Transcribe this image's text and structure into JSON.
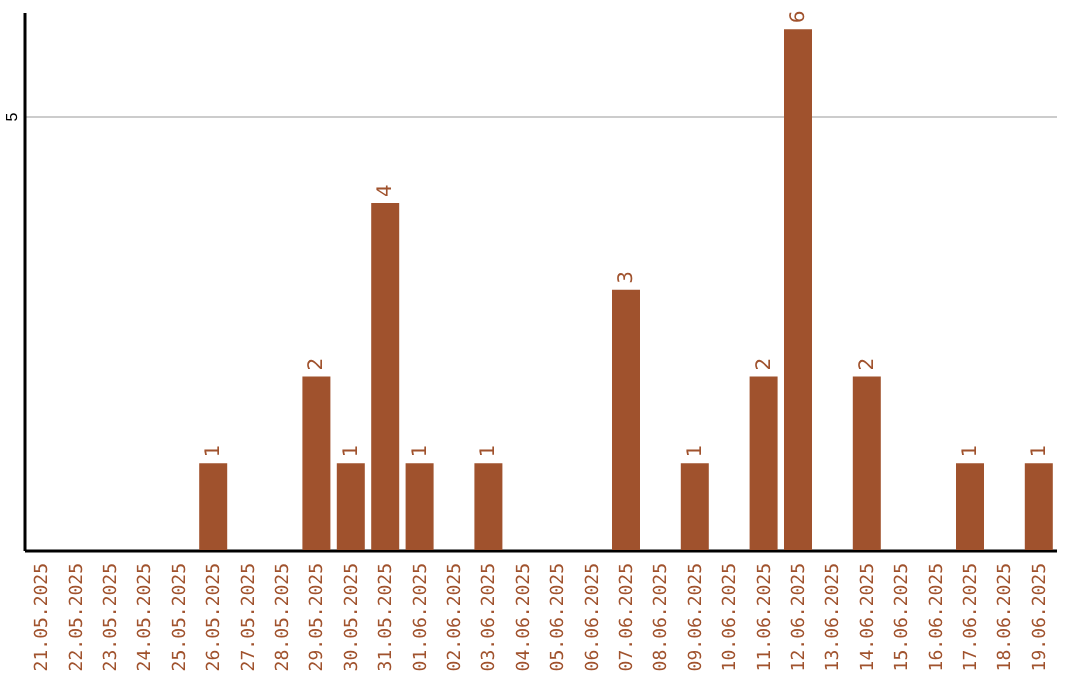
{
  "chart_data": {
    "type": "bar",
    "categories": [
      "21.05.2025",
      "22.05.2025",
      "23.05.2025",
      "24.05.2025",
      "25.05.2025",
      "26.05.2025",
      "27.05.2025",
      "28.05.2025",
      "29.05.2025",
      "30.05.2025",
      "31.05.2025",
      "01.06.2025",
      "02.06.2025",
      "03.06.2025",
      "04.06.2025",
      "05.06.2025",
      "06.06.2025",
      "07.06.2025",
      "08.06.2025",
      "09.06.2025",
      "10.06.2025",
      "11.06.2025",
      "12.06.2025",
      "13.06.2025",
      "14.06.2025",
      "15.06.2025",
      "16.06.2025",
      "17.06.2025",
      "18.06.2025",
      "19.06.2025"
    ],
    "values": [
      0,
      0,
      0,
      0,
      0,
      1,
      0,
      0,
      2,
      1,
      4,
      1,
      0,
      1,
      0,
      0,
      0,
      3,
      0,
      1,
      0,
      2,
      6,
      0,
      2,
      0,
      0,
      1,
      0,
      1
    ],
    "value_labels": [
      null,
      null,
      null,
      null,
      null,
      "1",
      null,
      null,
      "2",
      "1",
      "4",
      "1",
      null,
      "1",
      null,
      null,
      null,
      "3",
      null,
      "1",
      null,
      "2",
      "6",
      null,
      "2",
      null,
      null,
      "1",
      null,
      "1"
    ],
    "color": "#a0522d",
    "ylim": [
      0,
      6.2
    ],
    "yticks": [
      5
    ],
    "grid": "y"
  }
}
